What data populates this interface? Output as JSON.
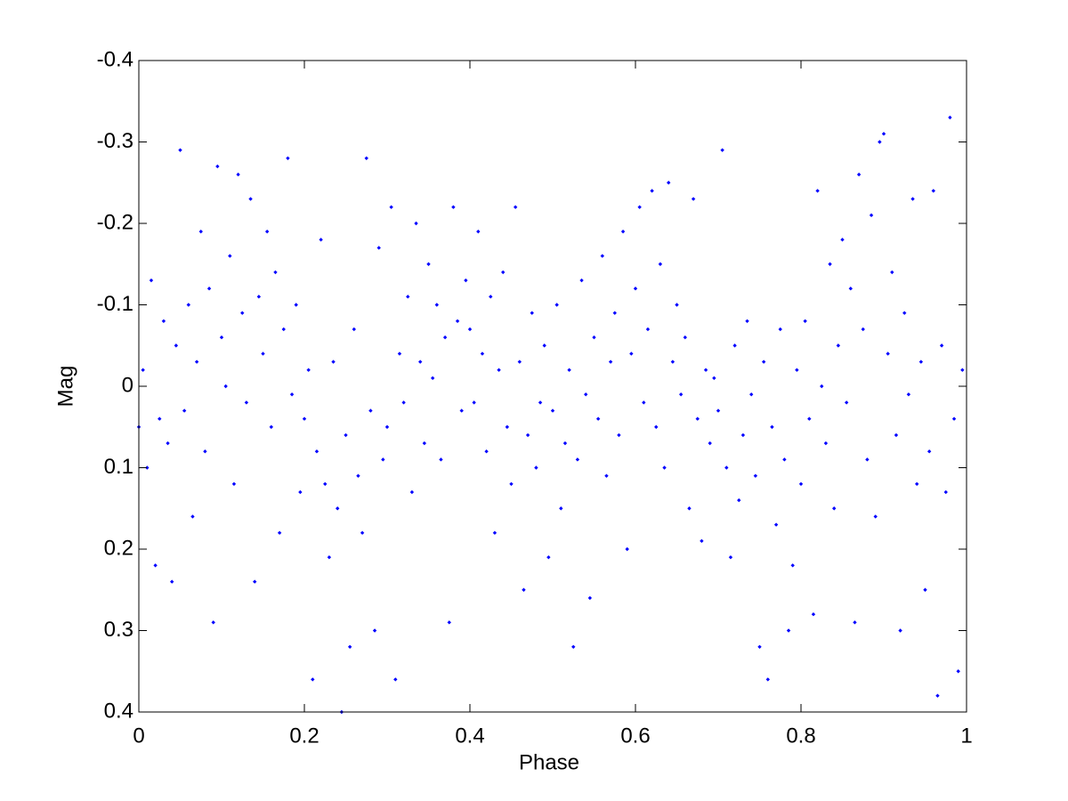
{
  "chart_data": {
    "type": "scatter",
    "x_label": "Phase",
    "y_label": "Mag",
    "color": "#0000ff",
    "xlim": [
      0,
      1
    ],
    "ylim": [
      -0.4,
      0.4
    ],
    "y_reversed": true,
    "grid": false,
    "xticks": [
      0,
      0.2,
      0.4,
      0.6,
      0.8,
      1
    ],
    "yticks": [
      -0.4,
      -0.3,
      -0.2,
      -0.1,
      0,
      0.1,
      0.2,
      0.3,
      0.4
    ],
    "x": [
      0,
      0.005,
      0.01,
      0.015,
      0.02,
      0.025,
      0.03,
      0.035,
      0.04,
      0.045,
      0.05,
      0.055,
      0.06,
      0.065,
      0.07,
      0.075,
      0.08,
      0.085,
      0.09,
      0.095,
      0.1,
      0.105,
      0.11,
      0.115,
      0.12,
      0.125,
      0.13,
      0.135,
      0.14,
      0.145,
      0.15,
      0.155,
      0.16,
      0.165,
      0.17,
      0.175,
      0.18,
      0.185,
      0.19,
      0.195,
      0.2,
      0.205,
      0.21,
      0.215,
      0.22,
      0.225,
      0.23,
      0.235,
      0.24,
      0.245,
      0.25,
      0.255,
      0.26,
      0.265,
      0.27,
      0.275,
      0.28,
      0.285,
      0.29,
      0.295,
      0.3,
      0.305,
      0.31,
      0.315,
      0.32,
      0.325,
      0.33,
      0.335,
      0.34,
      0.345,
      0.35,
      0.355,
      0.36,
      0.365,
      0.37,
      0.375,
      0.38,
      0.385,
      0.39,
      0.395,
      0.4,
      0.405,
      0.41,
      0.415,
      0.42,
      0.425,
      0.43,
      0.435,
      0.44,
      0.445,
      0.45,
      0.455,
      0.46,
      0.465,
      0.47,
      0.475,
      0.48,
      0.485,
      0.49,
      0.495,
      0.5,
      0.505,
      0.51,
      0.515,
      0.52,
      0.525,
      0.53,
      0.535,
      0.54,
      0.545,
      0.55,
      0.555,
      0.56,
      0.565,
      0.57,
      0.575,
      0.58,
      0.585,
      0.59,
      0.595,
      0.6,
      0.605,
      0.61,
      0.615,
      0.62,
      0.625,
      0.63,
      0.635,
      0.64,
      0.645,
      0.65,
      0.655,
      0.66,
      0.665,
      0.67,
      0.675,
      0.68,
      0.685,
      0.69,
      0.695,
      0.7,
      0.705,
      0.71,
      0.715,
      0.72,
      0.725,
      0.73,
      0.735,
      0.74,
      0.745,
      0.75,
      0.755,
      0.76,
      0.765,
      0.77,
      0.775,
      0.78,
      0.785,
      0.79,
      0.795,
      0.8,
      0.805,
      0.81,
      0.815,
      0.82,
      0.825,
      0.83,
      0.835,
      0.84,
      0.845,
      0.85,
      0.855,
      0.86,
      0.865,
      0.87,
      0.875,
      0.88,
      0.885,
      0.89,
      0.895,
      0.9,
      0.905,
      0.91,
      0.915,
      0.92,
      0.925,
      0.93,
      0.935,
      0.94,
      0.945,
      0.95,
      0.955,
      0.96,
      0.965,
      0.97,
      0.975,
      0.98,
      0.985,
      0.99,
      0.995
    ],
    "y": [
      0.05,
      -0.02,
      0.1,
      -0.13,
      0.22,
      0.04,
      -0.08,
      0.07,
      0.24,
      -0.05,
      -0.29,
      0.03,
      -0.1,
      0.16,
      -0.03,
      -0.19,
      0.08,
      -0.12,
      0.29,
      -0.27,
      -0.06,
      0.0,
      -0.16,
      0.12,
      -0.26,
      -0.09,
      0.02,
      -0.23,
      0.24,
      -0.11,
      -0.04,
      -0.19,
      0.05,
      -0.14,
      0.18,
      -0.07,
      -0.28,
      0.01,
      -0.1,
      0.13,
      0.04,
      -0.02,
      0.36,
      0.08,
      -0.18,
      0.12,
      0.21,
      -0.03,
      0.15,
      0.4,
      0.06,
      0.32,
      -0.07,
      0.11,
      0.18,
      -0.28,
      0.03,
      0.3,
      -0.17,
      0.09,
      0.05,
      -0.22,
      0.36,
      -0.04,
      0.02,
      -0.11,
      0.13,
      -0.2,
      -0.03,
      0.07,
      -0.15,
      -0.01,
      -0.1,
      0.09,
      -0.06,
      0.29,
      -0.22,
      -0.08,
      0.03,
      -0.13,
      -0.07,
      0.02,
      -0.19,
      -0.04,
      0.08,
      -0.11,
      0.18,
      -0.02,
      -0.14,
      0.05,
      0.12,
      -0.22,
      -0.03,
      0.25,
      0.06,
      -0.09,
      0.1,
      0.02,
      -0.05,
      0.21,
      0.03,
      -0.1,
      0.15,
      0.07,
      -0.02,
      0.32,
      0.09,
      -0.13,
      0.01,
      0.26,
      -0.06,
      0.04,
      -0.16,
      0.11,
      -0.03,
      -0.09,
      0.06,
      -0.19,
      0.2,
      -0.04,
      -0.12,
      -0.22,
      0.02,
      -0.07,
      -0.24,
      0.05,
      -0.15,
      0.1,
      -0.25,
      -0.03,
      -0.1,
      0.01,
      -0.06,
      0.15,
      -0.23,
      0.04,
      0.19,
      -0.02,
      0.07,
      -0.01,
      0.03,
      -0.29,
      0.1,
      0.21,
      -0.05,
      0.14,
      0.06,
      -0.08,
      0.01,
      0.11,
      0.32,
      -0.03,
      0.36,
      0.05,
      0.17,
      -0.07,
      0.09,
      0.3,
      0.22,
      -0.02,
      0.12,
      -0.08,
      0.04,
      0.28,
      -0.24,
      0.0,
      0.07,
      -0.15,
      0.15,
      -0.05,
      -0.18,
      0.02,
      -0.12,
      0.29,
      -0.26,
      -0.07,
      0.09,
      -0.21,
      0.16,
      -0.3,
      -0.31,
      -0.04,
      -0.14,
      0.06,
      0.3,
      -0.09,
      0.01,
      -0.23,
      0.12,
      -0.03,
      0.25,
      0.08,
      -0.24,
      0.38,
      -0.05,
      0.13,
      -0.33,
      0.04,
      0.35,
      -0.02
    ]
  }
}
